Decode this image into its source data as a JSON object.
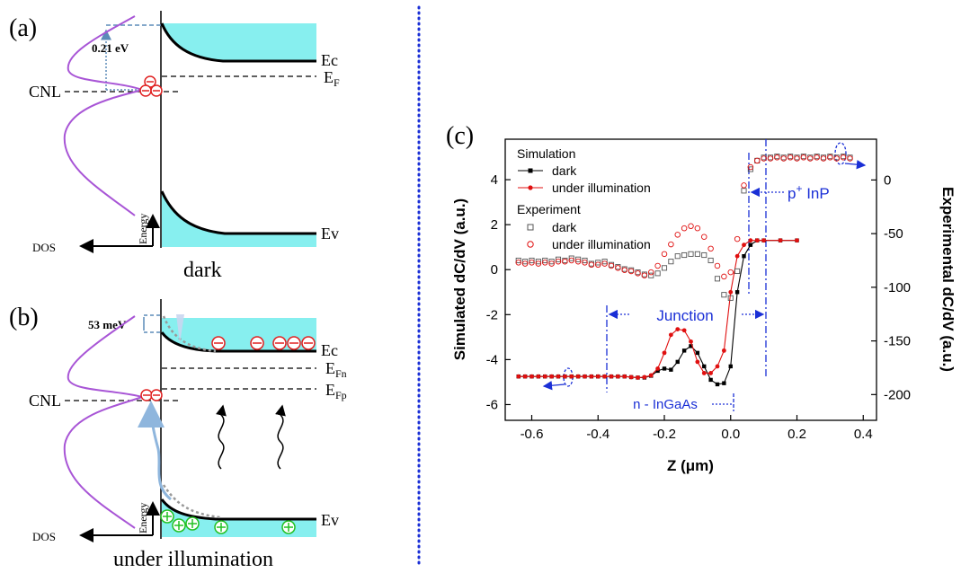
{
  "panel_a": {
    "label": "(a)",
    "barrier": "0.21 eV",
    "cnl": "CNL",
    "ec": "Ec",
    "ef_main": "E",
    "ef_sub": "F",
    "ev": "Ev",
    "energy": "Energy",
    "dos": "DOS",
    "caption": "dark"
  },
  "panel_b": {
    "label": "(b)",
    "barrier": "53 meV",
    "cnl": "CNL",
    "ec": "Ec",
    "efn_main": "E",
    "efn_sub": "Fn",
    "efp_main": "E",
    "efp_sub": "Fp",
    "ev": "Ev",
    "energy": "Energy",
    "dos": "DOS",
    "caption": "under illumination"
  },
  "panel_c": {
    "label": "(c)",
    "legend_sim_header": "Simulation",
    "legend_sim_dark": "dark",
    "legend_sim_illum": "under illumination",
    "legend_exp_header": "Experiment",
    "legend_exp_dark": "dark",
    "legend_exp_illum": "under illumination",
    "annot_pinp_main": "p",
    "annot_pinp_sup": "+",
    "annot_pinp_rest": " InP",
    "annot_junction": "Junction",
    "annot_ningaas": "n - InGaAs",
    "colors": {
      "annotation": "#1a2fd6",
      "dark": "#000000",
      "illum": "#e01010",
      "band_fill": "#87efef",
      "dos_curve": "#a855d6",
      "holes": "#22c022"
    }
  },
  "chart_data": {
    "type": "scatter",
    "xlabel": "Z (μm)",
    "ylabel": "Simulated dC/dV (a.u.)",
    "y2label": "Experimental dC/dV (a.u.)",
    "xlim": [
      -0.68,
      0.44
    ],
    "ylim": [
      -6.7,
      5.8
    ],
    "y2lim": [
      -224,
      38
    ],
    "xticks": [
      -0.6,
      -0.4,
      -0.2,
      0.0,
      0.2,
      0.4
    ],
    "xtick_labels": [
      "-0.6",
      "-0.4",
      "-0.2",
      "0.0",
      "0.2",
      "0.4"
    ],
    "yticks": [
      -6,
      -4,
      -2,
      0,
      2,
      4
    ],
    "ytick_labels": [
      "-6",
      "-4",
      "-2",
      "0",
      "2",
      "4"
    ],
    "y2ticks": [
      -200,
      -150,
      -100,
      -50,
      0
    ],
    "y2tick_labels": [
      "-200",
      "-150",
      "-100",
      "-50",
      "0"
    ],
    "series": [
      {
        "name": "dark",
        "group": "Simulation",
        "axis": "left",
        "marker": "filled-square",
        "color": "#000000",
        "x": [
          -0.64,
          -0.62,
          -0.6,
          -0.58,
          -0.56,
          -0.54,
          -0.52,
          -0.5,
          -0.48,
          -0.46,
          -0.44,
          -0.42,
          -0.4,
          -0.38,
          -0.36,
          -0.34,
          -0.32,
          -0.3,
          -0.28,
          -0.26,
          -0.24,
          -0.22,
          -0.2,
          -0.18,
          -0.16,
          -0.14,
          -0.12,
          -0.1,
          -0.08,
          -0.06,
          -0.04,
          -0.02,
          0.0,
          0.02,
          0.04,
          0.06,
          0.08,
          0.1,
          0.15,
          0.2
        ],
        "y": [
          -4.75,
          -4.75,
          -4.75,
          -4.75,
          -4.75,
          -4.75,
          -4.75,
          -4.75,
          -4.75,
          -4.75,
          -4.75,
          -4.75,
          -4.75,
          -4.75,
          -4.75,
          -4.75,
          -4.75,
          -4.78,
          -4.8,
          -4.8,
          -4.72,
          -4.5,
          -4.4,
          -4.45,
          -4.1,
          -3.6,
          -3.4,
          -3.7,
          -4.3,
          -4.9,
          -5.1,
          -5.05,
          -4.3,
          -1.0,
          0.6,
          1.1,
          1.3,
          1.3,
          1.3,
          1.3
        ]
      },
      {
        "name": "under illumination",
        "group": "Simulation",
        "axis": "left",
        "marker": "filled-circle",
        "color": "#e01010",
        "x": [
          -0.64,
          -0.62,
          -0.6,
          -0.58,
          -0.56,
          -0.54,
          -0.52,
          -0.5,
          -0.48,
          -0.46,
          -0.44,
          -0.42,
          -0.4,
          -0.38,
          -0.36,
          -0.34,
          -0.32,
          -0.3,
          -0.28,
          -0.26,
          -0.24,
          -0.22,
          -0.2,
          -0.18,
          -0.16,
          -0.14,
          -0.12,
          -0.1,
          -0.08,
          -0.06,
          -0.04,
          -0.02,
          0.0,
          0.02,
          0.04,
          0.06,
          0.08,
          0.1,
          0.15,
          0.2
        ],
        "y": [
          -4.75,
          -4.75,
          -4.75,
          -4.75,
          -4.75,
          -4.75,
          -4.75,
          -4.75,
          -4.75,
          -4.75,
          -4.75,
          -4.75,
          -4.75,
          -4.75,
          -4.75,
          -4.75,
          -4.75,
          -4.78,
          -4.8,
          -4.78,
          -4.7,
          -4.4,
          -3.7,
          -2.9,
          -2.65,
          -2.7,
          -3.2,
          -4.1,
          -4.6,
          -4.6,
          -4.3,
          -3.6,
          -1.0,
          0.6,
          1.1,
          1.3,
          1.3,
          1.3,
          1.3,
          1.3
        ]
      },
      {
        "name": "dark",
        "group": "Experiment",
        "axis": "right",
        "marker": "open-square",
        "color": "#555555",
        "x": [
          -0.64,
          -0.62,
          -0.6,
          -0.58,
          -0.56,
          -0.54,
          -0.52,
          -0.5,
          -0.48,
          -0.46,
          -0.44,
          -0.42,
          -0.4,
          -0.38,
          -0.36,
          -0.34,
          -0.32,
          -0.3,
          -0.28,
          -0.26,
          -0.24,
          -0.22,
          -0.2,
          -0.18,
          -0.16,
          -0.14,
          -0.12,
          -0.1,
          -0.08,
          -0.06,
          -0.04,
          -0.02,
          0.0,
          0.02,
          0.04,
          0.06,
          0.08,
          0.1,
          0.12,
          0.14,
          0.16,
          0.18,
          0.2,
          0.22,
          0.24,
          0.26,
          0.28,
          0.3,
          0.32,
          0.34,
          0.36
        ],
        "y": [
          -75,
          -76,
          -75,
          -76,
          -75,
          -76,
          -74,
          -75,
          -73,
          -74,
          -75,
          -78,
          -77,
          -76,
          -79,
          -81,
          -83,
          -84,
          -86,
          -88,
          -89,
          -87,
          -82,
          -76,
          -71,
          -70,
          -69,
          -69,
          -70,
          -75,
          -92,
          -107,
          -110,
          -85,
          -10,
          10,
          18,
          21,
          21,
          22,
          21,
          22,
          21,
          22,
          21,
          22,
          21,
          22,
          21,
          22,
          21
        ]
      },
      {
        "name": "under illumination",
        "group": "Experiment",
        "axis": "right",
        "marker": "open-circle",
        "color": "#e01010",
        "x": [
          -0.64,
          -0.62,
          -0.6,
          -0.58,
          -0.56,
          -0.54,
          -0.52,
          -0.5,
          -0.48,
          -0.46,
          -0.44,
          -0.42,
          -0.4,
          -0.38,
          -0.36,
          -0.34,
          -0.32,
          -0.3,
          -0.28,
          -0.26,
          -0.24,
          -0.22,
          -0.2,
          -0.18,
          -0.16,
          -0.14,
          -0.12,
          -0.1,
          -0.08,
          -0.06,
          -0.04,
          -0.02,
          0.0,
          0.02,
          0.04,
          0.06,
          0.08,
          0.1,
          0.12,
          0.14,
          0.16,
          0.18,
          0.2,
          0.22,
          0.24,
          0.26,
          0.28,
          0.3,
          0.32,
          0.34,
          0.36
        ],
        "y": [
          -77,
          -78,
          -77,
          -78,
          -77,
          -78,
          -76,
          -76,
          -75,
          -76,
          -77,
          -79,
          -79,
          -78,
          -80,
          -82,
          -84,
          -85,
          -87,
          -89,
          -86,
          -80,
          -69,
          -60,
          -51,
          -45,
          -43,
          -45,
          -53,
          -64,
          -80,
          -90,
          -86,
          -55,
          -5,
          12,
          18,
          20,
          20,
          21,
          20,
          21,
          20,
          21,
          20,
          21,
          20,
          21,
          20,
          21,
          20
        ]
      }
    ]
  }
}
